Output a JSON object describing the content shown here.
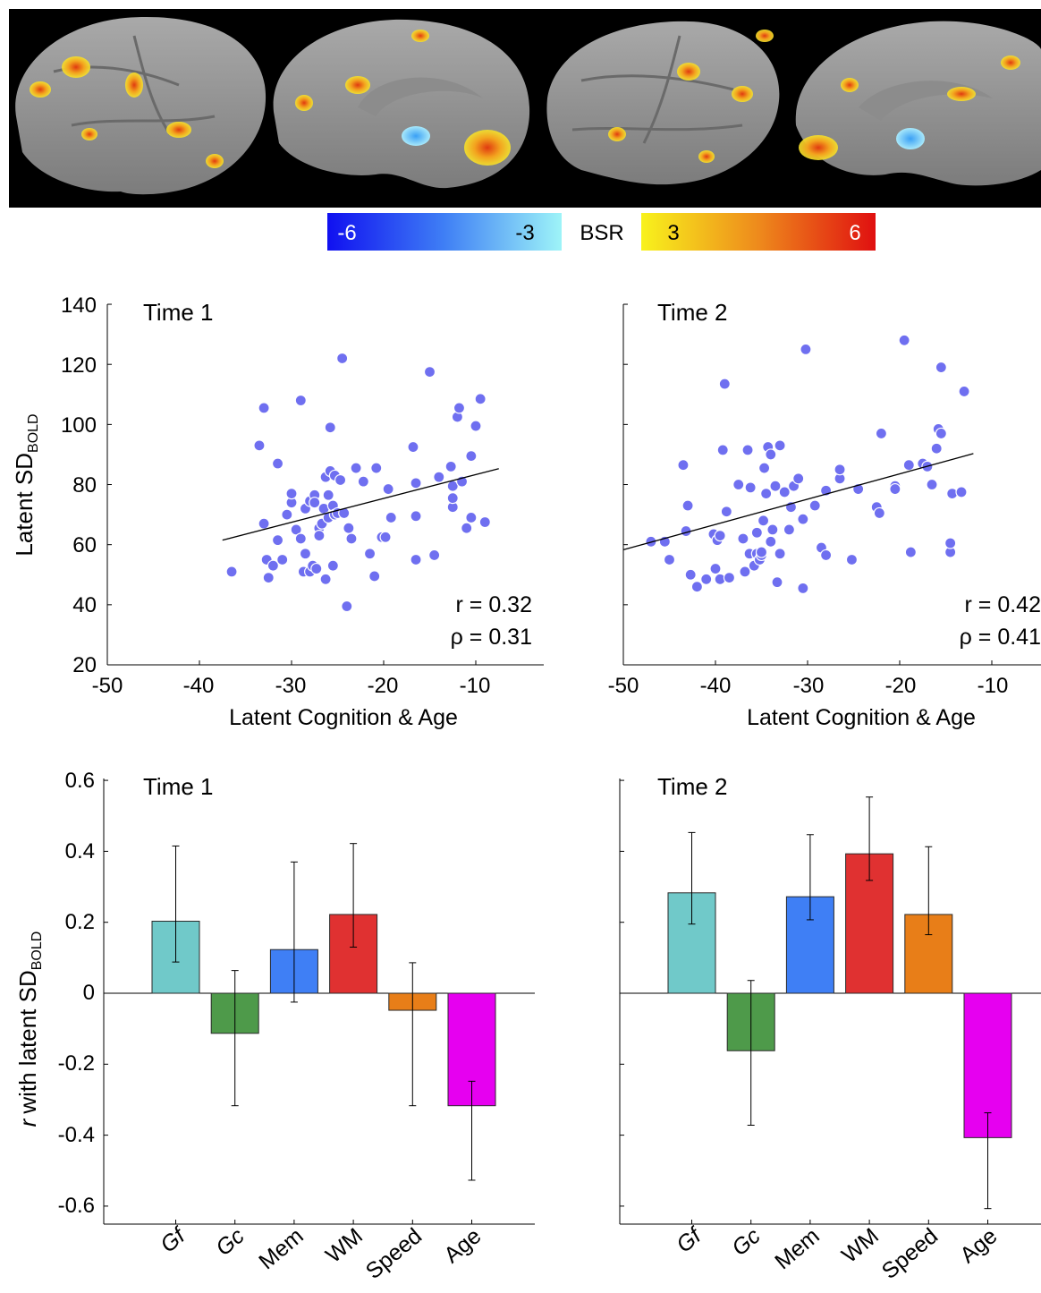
{
  "colorbar": {
    "label": "BSR",
    "neg_ticks": [
      "-6",
      "-3"
    ],
    "pos_ticks": [
      "3",
      "6"
    ]
  },
  "colors": {
    "point": "#6f6ff0",
    "gf": "#70c9c9",
    "gc": "#4e9a4a",
    "mem": "#3f7ff5",
    "wm": "#e03131",
    "speed": "#e87e18",
    "age": "#e600f0"
  },
  "chart_data": [
    {
      "type": "scatter",
      "panel": "Time 1",
      "xlabel": "Latent Cognition & Age",
      "ylabel_main": "Latent SD",
      "ylabel_sub": "BOLD",
      "xlim": [
        -50,
        -2
      ],
      "ylim": [
        20,
        140
      ],
      "xticks": [
        "-50",
        "-40",
        "-30",
        "-20",
        "-10"
      ],
      "yticks": [
        "20",
        "40",
        "60",
        "80",
        "100",
        "120",
        "140"
      ],
      "stats": [
        "r = 0.32",
        "ρ = 0.31"
      ],
      "fit_line": [
        [
          -37.5,
          61.5
        ],
        [
          -7.5,
          85.3
        ]
      ],
      "points": [
        [
          -36.5,
          51
        ],
        [
          -33.5,
          93
        ],
        [
          -33,
          105.5
        ],
        [
          -33,
          67
        ],
        [
          -32.7,
          55
        ],
        [
          -32.5,
          49
        ],
        [
          -32,
          53
        ],
        [
          -31.5,
          87
        ],
        [
          -31.5,
          61.5
        ],
        [
          -31,
          55
        ],
        [
          -30.5,
          70
        ],
        [
          -30,
          74
        ],
        [
          -30,
          77
        ],
        [
          -29.5,
          65
        ],
        [
          -29,
          62
        ],
        [
          -29,
          108
        ],
        [
          -28.7,
          51
        ],
        [
          -28.5,
          72
        ],
        [
          -28.5,
          57
        ],
        [
          -28,
          74.5
        ],
        [
          -28,
          51
        ],
        [
          -27.7,
          53
        ],
        [
          -27.5,
          76.5
        ],
        [
          -27.5,
          74
        ],
        [
          -27.3,
          52
        ],
        [
          -27,
          65.5
        ],
        [
          -27,
          63
        ],
        [
          -26.7,
          67
        ],
        [
          -26.5,
          72
        ],
        [
          -26.3,
          82.5
        ],
        [
          -26.3,
          48.5
        ],
        [
          -26,
          69
        ],
        [
          -26,
          76.5
        ],
        [
          -25.8,
          84.5
        ],
        [
          -25.8,
          99
        ],
        [
          -25.5,
          53
        ],
        [
          -25.5,
          73
        ],
        [
          -25.3,
          70
        ],
        [
          -25.3,
          83
        ],
        [
          -25,
          70.5
        ],
        [
          -24.7,
          81.5
        ],
        [
          -24.5,
          122
        ],
        [
          -24.3,
          70.5
        ],
        [
          -24,
          39.5
        ],
        [
          -23.8,
          65.5
        ],
        [
          -23.5,
          62
        ],
        [
          -23,
          85.5
        ],
        [
          -22.2,
          81
        ],
        [
          -21.5,
          57
        ],
        [
          -21,
          49.5
        ],
        [
          -20.8,
          85.5
        ],
        [
          -20.2,
          62.5
        ],
        [
          -19.8,
          62.5
        ],
        [
          -19.5,
          78.5
        ],
        [
          -19.2,
          69
        ],
        [
          -16.8,
          92.5
        ],
        [
          -16.5,
          69.5
        ],
        [
          -16.5,
          80.5
        ],
        [
          -16.5,
          55
        ],
        [
          -15,
          117.5
        ],
        [
          -14.5,
          56.5
        ],
        [
          -14,
          82.5
        ],
        [
          -12.7,
          86
        ],
        [
          -12.5,
          72.5
        ],
        [
          -12.5,
          79.5
        ],
        [
          -12.5,
          75.5
        ],
        [
          -12,
          102.5
        ],
        [
          -11.8,
          105.5
        ],
        [
          -11.5,
          81
        ],
        [
          -11,
          65.5
        ],
        [
          -10.5,
          69
        ],
        [
          -10.5,
          89.5
        ],
        [
          -10,
          99.5
        ],
        [
          -9.5,
          108.5
        ],
        [
          -9,
          67.5
        ]
      ]
    },
    {
      "type": "scatter",
      "panel": "Time 2",
      "xlabel": "Latent Cognition & Age",
      "xlim": [
        -50,
        -2
      ],
      "ylim": [
        20,
        140
      ],
      "xticks": [
        "-50",
        "-40",
        "-30",
        "-20",
        "-10"
      ],
      "stats": [
        "r = 0.42",
        "ρ = 0.41"
      ],
      "fit_line": [
        [
          -50,
          58.3
        ],
        [
          -12,
          90.3
        ]
      ],
      "points": [
        [
          -47,
          61
        ],
        [
          -45.5,
          61
        ],
        [
          -45,
          55
        ],
        [
          -43.5,
          86.5
        ],
        [
          -43.2,
          64.5
        ],
        [
          -43,
          73
        ],
        [
          -42.7,
          50
        ],
        [
          -42,
          46
        ],
        [
          -41,
          48.5
        ],
        [
          -40.2,
          63.5
        ],
        [
          -40,
          52
        ],
        [
          -39.8,
          61.5
        ],
        [
          -39.5,
          48.5
        ],
        [
          -39.5,
          63
        ],
        [
          -39.2,
          91.5
        ],
        [
          -39,
          113.5
        ],
        [
          -38.8,
          71
        ],
        [
          -38.5,
          49
        ],
        [
          -37.5,
          80
        ],
        [
          -37,
          62
        ],
        [
          -36.8,
          51
        ],
        [
          -36.5,
          91.5
        ],
        [
          -36.3,
          57
        ],
        [
          -36.2,
          79
        ],
        [
          -35.8,
          53
        ],
        [
          -35.5,
          57
        ],
        [
          -35.5,
          64
        ],
        [
          -35.2,
          55
        ],
        [
          -35,
          56.5
        ],
        [
          -35,
          57.5
        ],
        [
          -34.8,
          68
        ],
        [
          -34.7,
          85.5
        ],
        [
          -34.5,
          77
        ],
        [
          -34.3,
          92.5
        ],
        [
          -34,
          61
        ],
        [
          -34,
          90
        ],
        [
          -33.8,
          65
        ],
        [
          -33.5,
          79.5
        ],
        [
          -33.3,
          47.5
        ],
        [
          -33,
          93
        ],
        [
          -33,
          57
        ],
        [
          -32.5,
          77.5
        ],
        [
          -32,
          65
        ],
        [
          -31.8,
          72.5
        ],
        [
          -31.5,
          79.5
        ],
        [
          -31,
          82
        ],
        [
          -30.5,
          45.5
        ],
        [
          -30.5,
          68.5
        ],
        [
          -30.2,
          125
        ],
        [
          -29.2,
          73
        ],
        [
          -28.5,
          59
        ],
        [
          -28,
          56.5
        ],
        [
          -28,
          78
        ],
        [
          -26.5,
          82
        ],
        [
          -26.5,
          85
        ],
        [
          -25.2,
          55
        ],
        [
          -24.5,
          78.5
        ],
        [
          -22.5,
          72.5
        ],
        [
          -22.2,
          70.5
        ],
        [
          -22,
          97
        ],
        [
          -20.5,
          79.5
        ],
        [
          -20.5,
          78.5
        ],
        [
          -19.5,
          128
        ],
        [
          -19,
          86.5
        ],
        [
          -18.8,
          57.5
        ],
        [
          -17.5,
          87
        ],
        [
          -17,
          86
        ],
        [
          -16.5,
          80
        ],
        [
          -16,
          92
        ],
        [
          -15.8,
          98.5
        ],
        [
          -15.5,
          119
        ],
        [
          -15.5,
          97
        ],
        [
          -14.5,
          57.5
        ],
        [
          -14.5,
          60.5
        ],
        [
          -14.3,
          77
        ],
        [
          -13.3,
          77.5
        ],
        [
          -13,
          111
        ]
      ]
    },
    {
      "type": "bar",
      "panel": "Time 1",
      "ylabel_prefix": "r",
      "ylabel_main": "with latent SD",
      "ylabel_sub": "BOLD",
      "categories": [
        "Gf",
        "Gc",
        "Mem",
        "WM",
        "Speed",
        "Age"
      ],
      "values": [
        0.203,
        -0.113,
        0.123,
        0.222,
        -0.048,
        -0.317
      ],
      "ci_low": [
        0.088,
        -0.317,
        -0.025,
        0.13,
        -0.317,
        -0.527
      ],
      "ci_high": [
        0.415,
        0.064,
        0.37,
        0.422,
        0.086,
        -0.248
      ],
      "ylim": [
        -0.66,
        0.6
      ],
      "yticks": [
        "-0.6",
        "-0.4",
        "-0.2",
        "0",
        "0.2",
        "0.4",
        "0.6"
      ]
    },
    {
      "type": "bar",
      "panel": "Time 2",
      "categories": [
        "Gf",
        "Gc",
        "Mem",
        "WM",
        "Speed",
        "Age"
      ],
      "values": [
        0.283,
        -0.162,
        0.272,
        0.393,
        0.222,
        -0.407
      ],
      "ci_low": [
        0.195,
        -0.372,
        0.207,
        0.318,
        0.165,
        -0.607
      ],
      "ci_high": [
        0.453,
        0.036,
        0.447,
        0.553,
        0.413,
        -0.337
      ],
      "ylim": [
        -0.66,
        0.6
      ]
    }
  ]
}
